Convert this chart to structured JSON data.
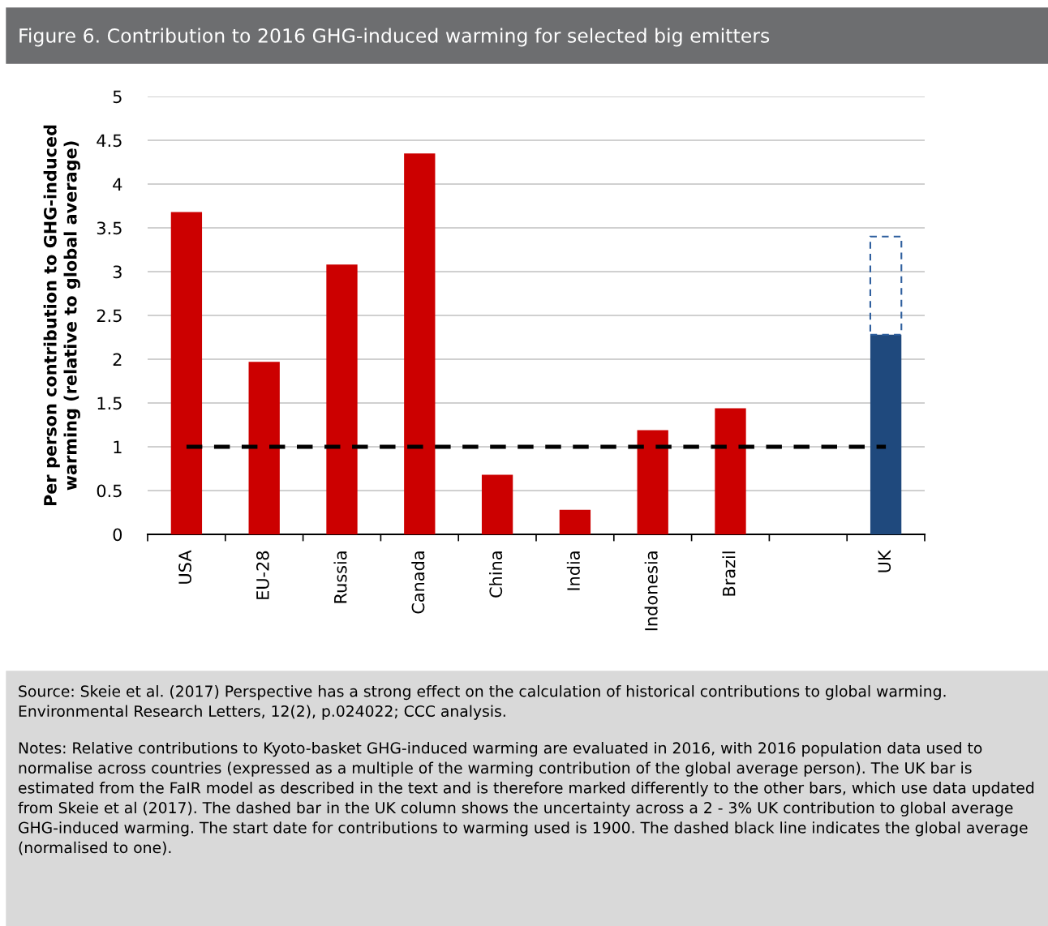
{
  "chart_data": {
    "type": "bar",
    "title": "Figure 6. Contribution to 2016 GHG-induced warming for selected big emitters",
    "ylabel": "Per person contribution to GHG-induced\nwarming (relative to global average)",
    "categories": [
      "USA",
      "EU-28",
      "Russia",
      "Canada",
      "China",
      "India",
      "Indonesia",
      "Brazil",
      null,
      "UK"
    ],
    "stacked": true,
    "series": [
      {
        "colors": [
          "#cc0000",
          "#cc0000",
          "#cc0000",
          "#cc0000",
          "#cc0000",
          "#cc0000",
          "#cc0000",
          "#cc0000",
          "#cc0000",
          "#1f497d"
        ],
        "values": [
          3.68,
          1.97,
          3.08,
          4.35,
          0.68,
          0.28,
          1.19,
          1.44,
          null,
          2.28
        ]
      },
      {
        "color": "#2e5f9e",
        "line_style": "dashed",
        "values": [
          null,
          null,
          null,
          null,
          null,
          null,
          null,
          null,
          null,
          1.12
        ]
      }
    ],
    "ylim": [
      0,
      5
    ],
    "yticks": [
      0,
      0.5,
      1,
      1.5,
      2,
      2.5,
      3,
      3.5,
      4,
      4.5,
      5
    ],
    "grid": "y",
    "ref_lines": [
      {
        "axis": "y",
        "value": 1,
        "color": "#000000",
        "line_style": "dashed"
      }
    ],
    "annotations": [
      "Source: Skeie et al. (2017) Perspective has a strong effect on the calculation of historical contributions to global warming. Environmental Research Letters, 12(2), p.024022; CCC analysis.",
      "Notes: Relative contributions to Kyoto-basket GHG-induced warming are evaluated in 2016, with 2016 population data used to normalise across countries (expressed as a multiple of the warming contribution of the global average person). The UK bar is estimated from the FaIR model as described in the text and is therefore marked differently to the other bars, which use data updated from Skeie et al (2017). The dashed bar in the UK column shows the uncertainty across a 2 - 3% UK contribution to global average GHG-induced warming. The start date for contributions to warming used is 1900. The dashed black line indicates the global average (normalised to one)."
    ]
  }
}
